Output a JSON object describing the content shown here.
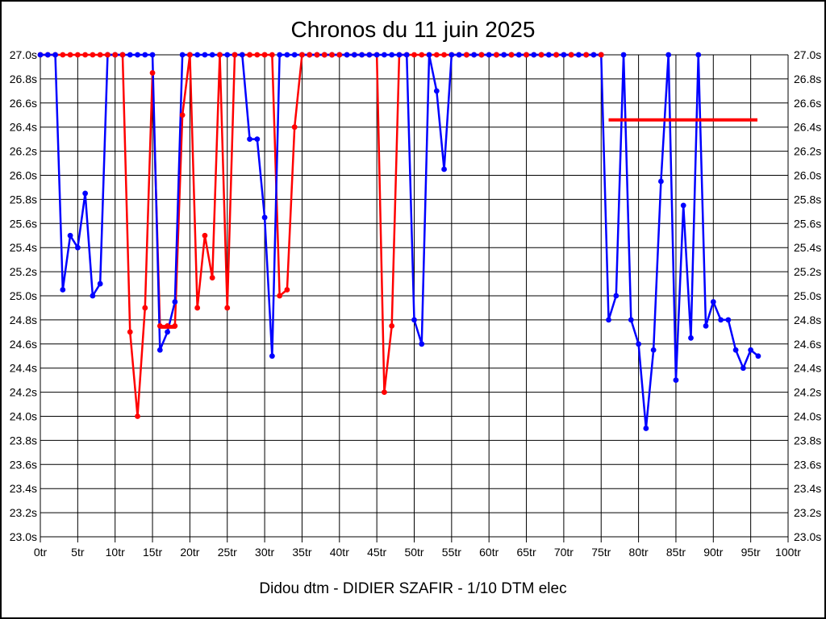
{
  "window": {
    "background": "#ffffff",
    "frame_color": "#000000"
  },
  "chart_data": {
    "type": "line",
    "title": "Chronos du 11 juin 2025",
    "subtitle": "Didou dtm - DIDIER SZAFIR - 1/10 DTM elec",
    "x_unit": "tr",
    "y_unit": "s",
    "xlim": [
      0,
      100
    ],
    "ylim": [
      23.0,
      27.0
    ],
    "grid": true,
    "legend_position": "none",
    "x_ticks": [
      "0tr",
      "5tr",
      "10tr",
      "15tr",
      "20tr",
      "25tr",
      "30tr",
      "35tr",
      "40tr",
      "45tr",
      "50tr",
      "55tr",
      "60tr",
      "65tr",
      "70tr",
      "75tr",
      "80tr",
      "85tr",
      "90tr",
      "95tr",
      "100tr"
    ],
    "y_ticks": [
      "27.0s",
      "26.8s",
      "26.6s",
      "26.4s",
      "26.2s",
      "26.0s",
      "25.8s",
      "25.6s",
      "25.4s",
      "25.2s",
      "25.0s",
      "24.8s",
      "24.6s",
      "24.4s",
      "24.2s",
      "24.0s",
      "23.8s",
      "23.6s",
      "23.4s",
      "23.2s",
      "23.0s"
    ],
    "series": [
      {
        "name": "red-run-lap-times",
        "color": "#ff0000",
        "start_lap": 0,
        "values": [
          27,
          27,
          27,
          27,
          27,
          27,
          27,
          27,
          27,
          27,
          27,
          27,
          24.7,
          24.0,
          24.9,
          26.85,
          24.75,
          24.75,
          24.75,
          26.5,
          27,
          24.9,
          25.5,
          25.15,
          27,
          24.9,
          27,
          27,
          27,
          27,
          27,
          27,
          25.0,
          25.05,
          26.4,
          27,
          27,
          27,
          27,
          27,
          27,
          27,
          27,
          27,
          27,
          27,
          24.2,
          24.75,
          27,
          27,
          27,
          27,
          27,
          27,
          27,
          27,
          27,
          27,
          27,
          27,
          27,
          27,
          27,
          27,
          27,
          27,
          27,
          27,
          27,
          27,
          27,
          27,
          27,
          27,
          27,
          27
        ]
      },
      {
        "name": "blue-run-lap-times",
        "color": "#0000ff",
        "start_lap": 0,
        "values": [
          27,
          27,
          27,
          25.05,
          25.5,
          25.4,
          25.85,
          25.0,
          25.1,
          27,
          27,
          27,
          27,
          27,
          27,
          27,
          24.55,
          24.7,
          24.95,
          27,
          27,
          27,
          27,
          27,
          27,
          27,
          27,
          27,
          26.3,
          26.3,
          25.65,
          24.5,
          27,
          27,
          27,
          27,
          27,
          27,
          27,
          27,
          27,
          27,
          27,
          27,
          27,
          27,
          27,
          27,
          27,
          27,
          24.8,
          24.6,
          27,
          26.7,
          26.05,
          27,
          27,
          27,
          27,
          27,
          27,
          27,
          27,
          27,
          27,
          27,
          27,
          27,
          27,
          27,
          27,
          27,
          27,
          27,
          27,
          27,
          24.8,
          25.0,
          27,
          24.8,
          24.6,
          23.9,
          24.55,
          25.95,
          27,
          24.3,
          25.75,
          24.65,
          27,
          24.75,
          24.95,
          24.8,
          24.8,
          24.55,
          24.4,
          24.55,
          24.5
        ]
      }
    ],
    "red_foreground_dot_laps": [
      9,
      10,
      11,
      20,
      24,
      26,
      28,
      30,
      35,
      36,
      37,
      38,
      39,
      40,
      57,
      59,
      61,
      63,
      65,
      67,
      69,
      71,
      73,
      75
    ],
    "marker_segments": [
      {
        "name": "red-flat-marker-short",
        "color": "#ff0000",
        "x_start": 16.0,
        "x_end": 18.15,
        "value": 24.74
      },
      {
        "name": "red-average-marker-long",
        "color": "#ff0000",
        "x_start": 76.0,
        "x_end": 95.9,
        "value": 26.46
      }
    ]
  }
}
